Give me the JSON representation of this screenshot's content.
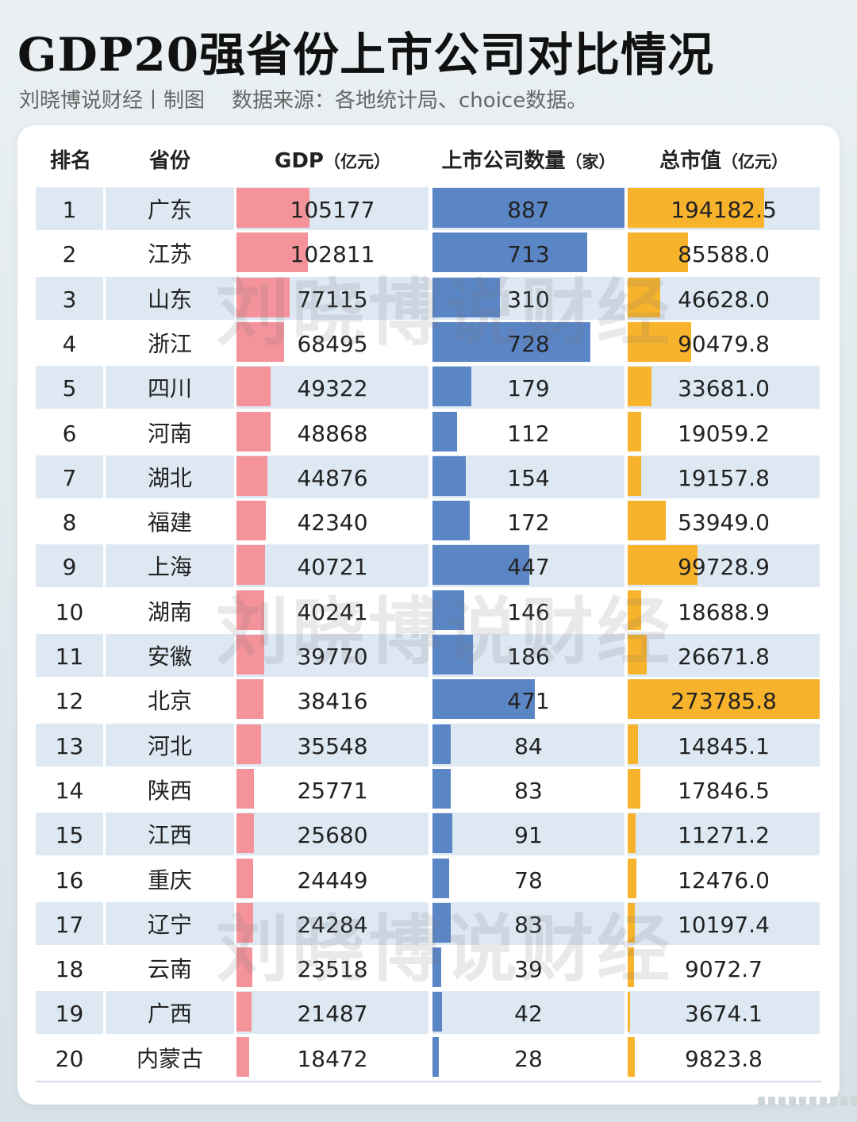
{
  "title": "GDP20强省份上市公司对比情况",
  "subtitle": {
    "author": "刘晓博说财经丨制图",
    "source": "数据来源：各地统计局、choice数据。"
  },
  "headers": {
    "rank": "排名",
    "province": "省份",
    "gdp": "GDP",
    "gdp_unit": "（亿元）",
    "count": "上市公司数量",
    "count_unit": "（家）",
    "cap": "总市值",
    "cap_unit": "（亿元）"
  },
  "watermark": "刘晓博说财经",
  "colors": {
    "gdp_bar": "#f5939b",
    "count_bar": "#5b86c6",
    "cap_bar": "#f8b32c",
    "row_stripe": "#dde8f3"
  },
  "chart_data": {
    "type": "table",
    "columns": [
      "排名",
      "省份",
      "GDP（亿元）",
      "上市公司数量（家）",
      "总市值（亿元）"
    ],
    "rows": [
      {
        "rank": "1",
        "province": "广东",
        "gdp": "105177",
        "count": "887",
        "cap": "194182.5"
      },
      {
        "rank": "2",
        "province": "江苏",
        "gdp": "102811",
        "count": "713",
        "cap": "85588.0"
      },
      {
        "rank": "3",
        "province": "山东",
        "gdp": "77115",
        "count": "310",
        "cap": "46628.0"
      },
      {
        "rank": "4",
        "province": "浙江",
        "gdp": "68495",
        "count": "728",
        "cap": "90479.8"
      },
      {
        "rank": "5",
        "province": "四川",
        "gdp": "49322",
        "count": "179",
        "cap": "33681.0"
      },
      {
        "rank": "6",
        "province": "河南",
        "gdp": "48868",
        "count": "112",
        "cap": "19059.2"
      },
      {
        "rank": "7",
        "province": "湖北",
        "gdp": "44876",
        "count": "154",
        "cap": "19157.8"
      },
      {
        "rank": "8",
        "province": "福建",
        "gdp": "42340",
        "count": "172",
        "cap": "53949.0"
      },
      {
        "rank": "9",
        "province": "上海",
        "gdp": "40721",
        "count": "447",
        "cap": "99728.9"
      },
      {
        "rank": "10",
        "province": "湖南",
        "gdp": "40241",
        "count": "146",
        "cap": "18688.9"
      },
      {
        "rank": "11",
        "province": "安徽",
        "gdp": "39770",
        "count": "186",
        "cap": "26671.8"
      },
      {
        "rank": "12",
        "province": "北京",
        "gdp": "38416",
        "count": "471",
        "cap": "273785.8"
      },
      {
        "rank": "13",
        "province": "河北",
        "gdp": "35548",
        "count": "84",
        "cap": "14845.1"
      },
      {
        "rank": "14",
        "province": "陕西",
        "gdp": "25771",
        "count": "83",
        "cap": "17846.5"
      },
      {
        "rank": "15",
        "province": "江西",
        "gdp": "25680",
        "count": "91",
        "cap": "11271.2"
      },
      {
        "rank": "16",
        "province": "重庆",
        "gdp": "24449",
        "count": "78",
        "cap": "12476.0"
      },
      {
        "rank": "17",
        "province": "辽宁",
        "gdp": "24284",
        "count": "83",
        "cap": "10197.4"
      },
      {
        "rank": "18",
        "province": "云南",
        "gdp": "23518",
        "count": "39",
        "cap": "9072.7"
      },
      {
        "rank": "19",
        "province": "广西",
        "gdp": "21487",
        "count": "42",
        "cap": "3674.1"
      },
      {
        "rank": "20",
        "province": "内蒙古",
        "gdp": "18472",
        "count": "28",
        "cap": "9823.8"
      }
    ]
  }
}
